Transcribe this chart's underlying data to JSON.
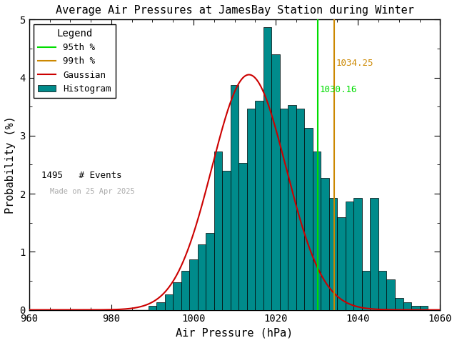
{
  "title": "Average Air Pressures at JamesBay Station during Winter",
  "xlabel": "Air Pressure (hPa)",
  "ylabel": "Probability (%)",
  "bg_color": "#ffffff",
  "hist_color": "#008B8B",
  "hist_edge_color": "#000000",
  "gaussian_color": "#cc0000",
  "p95_color": "#00dd00",
  "p99_color": "#cc8800",
  "p95_value": 1030.16,
  "p99_value": 1034.25,
  "n_events": 1495,
  "xlim": [
    960,
    1060
  ],
  "ylim": [
    0,
    5
  ],
  "xticks": [
    960,
    980,
    1000,
    1020,
    1040,
    1060
  ],
  "yticks": [
    0,
    1,
    2,
    3,
    4,
    5
  ],
  "bin_width": 2,
  "date_label": "Made on 25 Apr 2025",
  "gauss_mean": 1013.5,
  "gauss_std": 9.0,
  "gauss_peak": 4.05,
  "bar_centers": [
    990,
    992,
    994,
    996,
    998,
    1000,
    1002,
    1004,
    1006,
    1008,
    1010,
    1012,
    1014,
    1016,
    1018,
    1020,
    1022,
    1024,
    1026,
    1028,
    1030,
    1032,
    1034,
    1036,
    1038,
    1040,
    1042,
    1044,
    1046,
    1048,
    1050,
    1052,
    1054,
    1056
  ],
  "bar_heights": [
    0.07,
    0.13,
    0.27,
    0.47,
    0.67,
    0.87,
    1.13,
    1.33,
    2.73,
    2.4,
    3.87,
    2.53,
    3.47,
    3.6,
    4.87,
    4.4,
    3.47,
    3.53,
    3.47,
    3.13,
    2.73,
    2.27,
    1.93,
    1.6,
    1.87,
    1.93,
    0.67,
    1.93,
    0.67,
    0.53,
    0.2,
    0.13,
    0.07,
    0.07
  ]
}
